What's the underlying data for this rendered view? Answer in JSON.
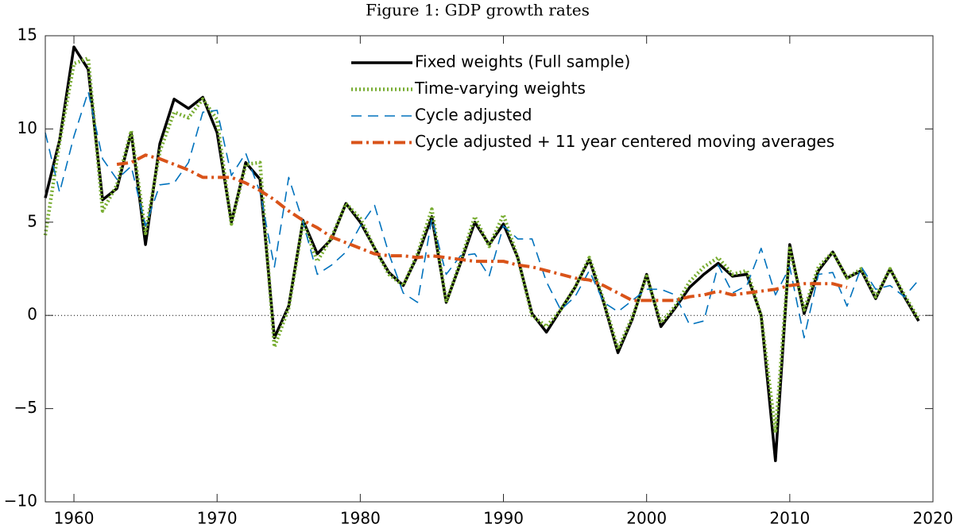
{
  "chart_data": {
    "type": "line",
    "title": "Figure 1: GDP growth rates",
    "x": [
      1958,
      1959,
      1960,
      1961,
      1962,
      1963,
      1964,
      1965,
      1966,
      1967,
      1968,
      1969,
      1970,
      1971,
      1972,
      1973,
      1974,
      1975,
      1976,
      1977,
      1978,
      1979,
      1980,
      1981,
      1982,
      1983,
      1984,
      1985,
      1986,
      1987,
      1988,
      1989,
      1990,
      1991,
      1992,
      1993,
      1994,
      1995,
      1996,
      1997,
      1998,
      1999,
      2000,
      2001,
      2002,
      2003,
      2004,
      2005,
      2006,
      2007,
      2008,
      2009,
      2010,
      2011,
      2012,
      2013,
      2014,
      2015,
      2016,
      2017,
      2018,
      2019
    ],
    "series": [
      {
        "name": "Fixed weights (Full sample)",
        "color": "#000000",
        "style": "solid",
        "values": [
          6.3,
          9.4,
          14.4,
          13.2,
          6.2,
          6.8,
          9.8,
          3.8,
          9.2,
          11.6,
          11.1,
          11.7,
          9.8,
          5.0,
          8.2,
          7.3,
          -1.2,
          0.5,
          5.1,
          3.3,
          4.1,
          6.0,
          5.0,
          3.6,
          2.3,
          1.6,
          3.2,
          5.3,
          0.7,
          2.8,
          5.0,
          3.8,
          4.9,
          3.1,
          0.1,
          -0.9,
          0.3,
          1.5,
          3.0,
          0.7,
          -2.0,
          -0.2,
          2.2,
          -0.6,
          0.4,
          1.5,
          2.2,
          2.8,
          2.1,
          2.2,
          0.0,
          -7.8,
          3.8,
          0.1,
          2.4,
          3.4,
          2.0,
          2.4,
          0.9,
          2.5,
          1.0,
          -0.3
        ]
      },
      {
        "name": "Time-varying weights",
        "color": "#77ac30",
        "style": "dotted",
        "values": [
          4.3,
          9.3,
          13.5,
          13.8,
          5.6,
          7.0,
          9.9,
          4.4,
          8.8,
          10.9,
          10.6,
          11.6,
          10.5,
          4.9,
          8.1,
          8.2,
          -1.7,
          0.4,
          5.0,
          2.9,
          4.2,
          6.0,
          5.2,
          3.6,
          2.2,
          1.6,
          3.3,
          5.7,
          0.7,
          2.9,
          5.3,
          3.7,
          5.4,
          3.1,
          0.0,
          -0.6,
          0.3,
          1.5,
          3.1,
          0.8,
          -1.8,
          -0.1,
          2.1,
          -0.4,
          0.5,
          1.8,
          2.6,
          3.1,
          2.2,
          2.4,
          0.0,
          -6.3,
          3.6,
          0.3,
          2.6,
          3.4,
          2.0,
          2.5,
          1.0,
          2.5,
          1.1,
          -0.2
        ]
      },
      {
        "name": "Cycle adjusted",
        "color": "#0072bd",
        "style": "dashed",
        "values": [
          9.8,
          6.6,
          9.6,
          12.0,
          8.4,
          7.3,
          8.0,
          4.8,
          7.0,
          7.1,
          8.2,
          10.9,
          11.0,
          7.5,
          8.7,
          6.6,
          2.6,
          7.4,
          5.0,
          2.2,
          2.7,
          3.4,
          4.8,
          5.9,
          3.3,
          1.2,
          0.7,
          5.2,
          2.2,
          3.2,
          3.3,
          2.1,
          4.8,
          4.1,
          4.1,
          1.8,
          0.3,
          1.0,
          2.4,
          0.7,
          0.2,
          0.8,
          1.4,
          1.4,
          1.1,
          -0.5,
          -0.3,
          2.7,
          1.2,
          1.6,
          3.6,
          1.1,
          2.6,
          -1.2,
          2.2,
          2.3,
          0.5,
          2.6,
          1.4,
          1.6,
          1.0,
          1.9
        ]
      },
      {
        "name": "Cycle adjusted + 11 year centered moving averages",
        "color": "#d95319",
        "style": "dashdot",
        "values": [
          null,
          null,
          null,
          null,
          null,
          8.1,
          8.2,
          8.6,
          8.4,
          8.1,
          7.8,
          7.4,
          7.4,
          7.4,
          7.1,
          6.7,
          6.2,
          5.6,
          5.1,
          4.7,
          4.2,
          3.9,
          3.6,
          3.3,
          3.2,
          3.2,
          3.1,
          3.2,
          3.1,
          3.0,
          2.9,
          2.9,
          2.9,
          2.7,
          2.6,
          2.4,
          2.2,
          2.0,
          1.9,
          1.6,
          1.2,
          0.8,
          0.8,
          0.8,
          0.8,
          1.0,
          1.1,
          1.3,
          1.1,
          1.2,
          1.3,
          1.4,
          1.6,
          1.7,
          1.7,
          1.7,
          1.5,
          null,
          null,
          null,
          null,
          null
        ]
      }
    ],
    "xlim": [
      1958,
      2020
    ],
    "xticks": [
      1960,
      1970,
      1980,
      1990,
      2000,
      2010,
      2020
    ],
    "ylim": [
      -10,
      15
    ],
    "yticks": [
      {
        "value": -10,
        "label": "−10"
      },
      {
        "value": -5,
        "label": "−5"
      },
      0,
      5,
      10,
      15
    ],
    "reference_line": 0,
    "legend": "top-right"
  }
}
